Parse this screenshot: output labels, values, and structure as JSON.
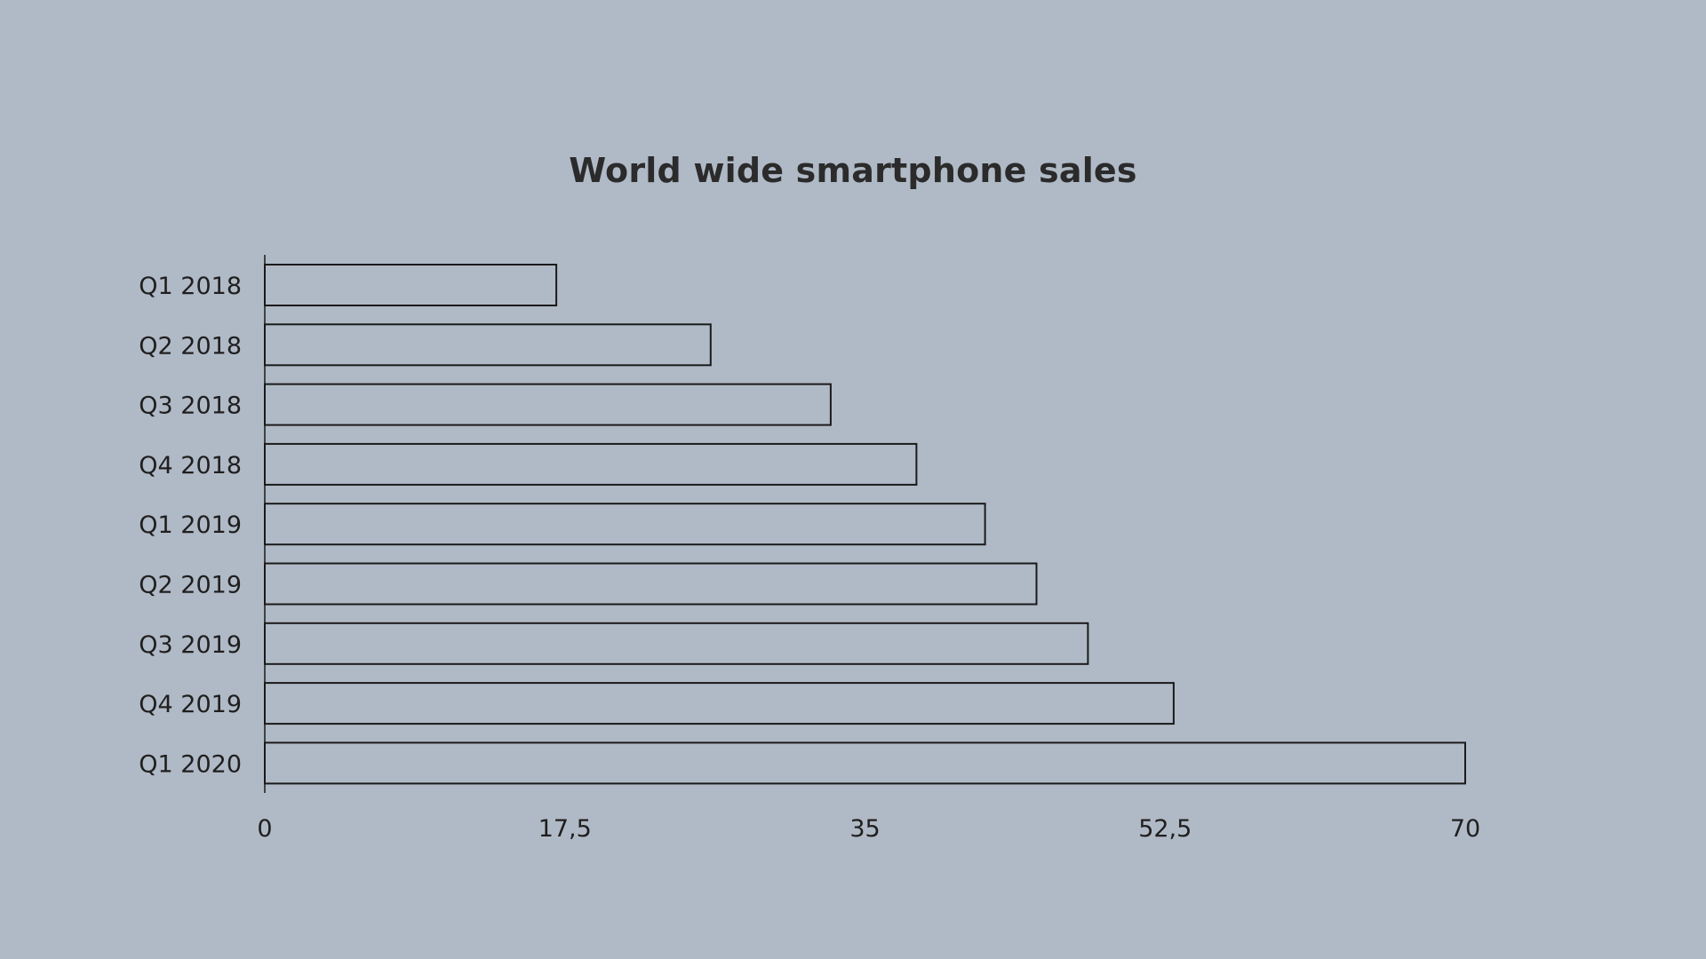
{
  "chart_data": {
    "type": "bar",
    "orientation": "horizontal",
    "title": "World wide smartphone sales",
    "xlabel": "",
    "ylabel": "",
    "categories": [
      "Q1 2018",
      "Q2 2018",
      "Q3 2018",
      "Q4 2018",
      "Q1 2019",
      "Q2 2019",
      "Q3 2019",
      "Q4 2019",
      "Q1 2020"
    ],
    "values": [
      17,
      26,
      33,
      38,
      42,
      45,
      48,
      53,
      70
    ],
    "xlim": [
      0,
      70
    ],
    "ticks": [
      "0",
      "17,5",
      "35",
      "52,5",
      "70"
    ],
    "tick_values": [
      0,
      17.5,
      35,
      52.5,
      70
    ],
    "grid": false,
    "legend": "none",
    "bar_fill": "none",
    "bar_stroke": "#1a1a1a",
    "background": "#b0bac6"
  }
}
